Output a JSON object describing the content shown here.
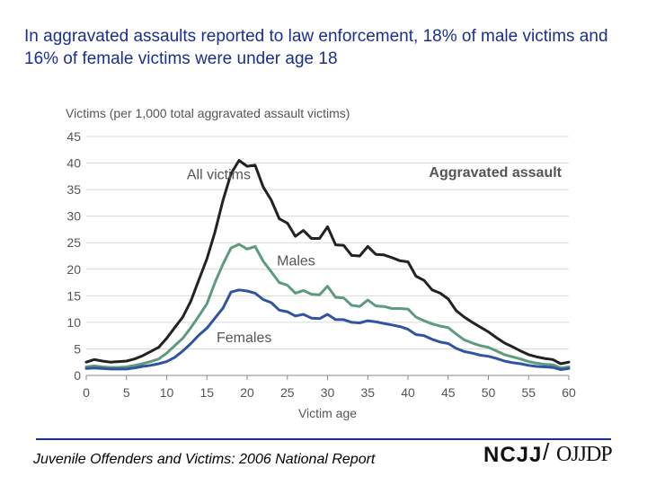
{
  "slide": {
    "title": "In aggravated assaults reported to law enforcement, 18% of male victims and 16% of female victims were under age 18",
    "footer_citation": "Juvenile Offenders and Victims: 2006 National Report",
    "logos": {
      "ncjj": "NCJJ",
      "slash": "/",
      "ojjdp": "OJJDP"
    }
  },
  "chart_data": {
    "type": "line",
    "title": "Aggravated assault",
    "ylabel": "Victims (per 1,000 total aggravated assault victims)",
    "xlabel": "Victim age",
    "xlim": [
      0,
      60
    ],
    "ylim": [
      0,
      45
    ],
    "xticks": [
      0,
      5,
      10,
      15,
      20,
      25,
      30,
      35,
      40,
      45,
      50,
      55,
      60
    ],
    "yticks": [
      0,
      5,
      10,
      15,
      20,
      25,
      30,
      35,
      40,
      45
    ],
    "x": [
      0,
      1,
      2,
      3,
      4,
      5,
      6,
      7,
      8,
      9,
      10,
      11,
      12,
      13,
      14,
      15,
      16,
      17,
      18,
      19,
      20,
      21,
      22,
      23,
      24,
      25,
      26,
      27,
      28,
      29,
      30,
      31,
      32,
      33,
      34,
      35,
      36,
      37,
      38,
      39,
      40,
      41,
      42,
      43,
      44,
      45,
      46,
      47,
      48,
      49,
      50,
      51,
      52,
      53,
      54,
      55,
      56,
      57,
      58,
      59,
      60
    ],
    "series": [
      {
        "name": "All victims",
        "color": "#222222",
        "values": [
          2.5,
          3,
          2.7,
          2.5,
          2.6,
          2.7,
          3.1,
          3.7,
          4.5,
          5.3,
          7,
          9,
          11,
          14,
          18,
          22,
          27,
          33,
          38,
          40.5,
          39.4,
          39.6,
          35.5,
          33,
          29.5,
          28.7,
          26.2,
          27.3,
          25.8,
          25.8,
          28,
          24.6,
          24.5,
          22.6,
          22.5,
          24.3,
          22.8,
          22.7,
          22.2,
          21.6,
          21.4,
          18.7,
          17.9,
          16.1,
          15.5,
          14.4,
          12.2,
          11,
          10,
          9.1,
          8.2,
          7.1,
          6.1,
          5.4,
          4.6,
          3.9,
          3.5,
          3.2,
          3,
          2.2,
          2.5
        ]
      },
      {
        "name": "Males",
        "color": "#5e9a7e",
        "values": [
          1.6,
          1.8,
          1.6,
          1.5,
          1.5,
          1.6,
          1.9,
          2.2,
          2.6,
          3.1,
          4.2,
          5.6,
          7,
          9,
          11.2,
          13.5,
          17.5,
          21,
          24,
          24.7,
          23.8,
          24.3,
          21.5,
          19.5,
          17.5,
          17,
          15.5,
          16,
          15.3,
          15.2,
          16.8,
          14.7,
          14.6,
          13.2,
          13,
          14.2,
          13.1,
          13,
          12.6,
          12.6,
          12.5,
          11,
          10.3,
          9.7,
          9.3,
          9,
          7.8,
          6.7,
          6.1,
          5.6,
          5.3,
          4.6,
          3.9,
          3.5,
          3.1,
          2.6,
          2.3,
          2.1,
          2,
          1.4,
          1.6
        ]
      },
      {
        "name": "Females",
        "color": "#2f54a0",
        "values": [
          1.3,
          1.4,
          1.3,
          1.2,
          1.2,
          1.2,
          1.4,
          1.7,
          1.9,
          2.2,
          2.6,
          3.4,
          4.6,
          6,
          7.6,
          8.9,
          10.8,
          12.7,
          15.7,
          16.1,
          15.9,
          15.5,
          14.3,
          13.7,
          12.3,
          12,
          11.2,
          11.5,
          10.8,
          10.7,
          11.5,
          10.5,
          10.5,
          10,
          9.9,
          10.3,
          10.1,
          9.8,
          9.5,
          9.2,
          8.7,
          7.7,
          7.5,
          6.8,
          6.3,
          6,
          5.1,
          4.5,
          4.2,
          3.8,
          3.6,
          3.2,
          2.7,
          2.4,
          2.2,
          1.9,
          1.7,
          1.6,
          1.5,
          1.1,
          1.3
        ]
      }
    ],
    "annotations": [
      {
        "text": "All victims",
        "x": 12.5,
        "y": 37
      },
      {
        "text": "Males",
        "x": 23.7,
        "y": 20.7
      },
      {
        "text": "Females",
        "x": 16.2,
        "y": 6.3
      }
    ]
  }
}
